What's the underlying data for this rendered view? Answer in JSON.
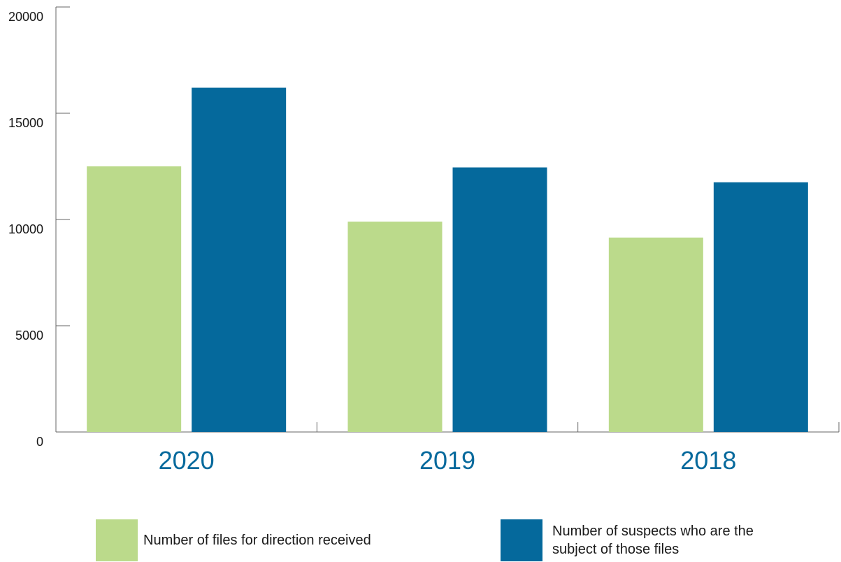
{
  "chart_data": {
    "type": "bar",
    "categories": [
      "2020",
      "2019",
      "2018"
    ],
    "series": [
      {
        "name": "Number of files for direction received",
        "values": [
          12500,
          9900,
          9150
        ],
        "color": "#bbda8b"
      },
      {
        "name": "Number of suspects who are the subject of those files",
        "values": [
          16200,
          12450,
          11750
        ],
        "color": "#05699c"
      }
    ],
    "ylim": [
      0,
      20000
    ],
    "yticks": [
      "0",
      "5000",
      "10000",
      "15000",
      "20000"
    ],
    "grid": false,
    "legend_position": "bottom",
    "category_label_color": "#05699c"
  },
  "legend": {
    "item1": {
      "label": "Number of files for direction received"
    },
    "item2": {
      "label_line1": "Number of suspects who are the",
      "label_line2": "subject of those files"
    }
  }
}
